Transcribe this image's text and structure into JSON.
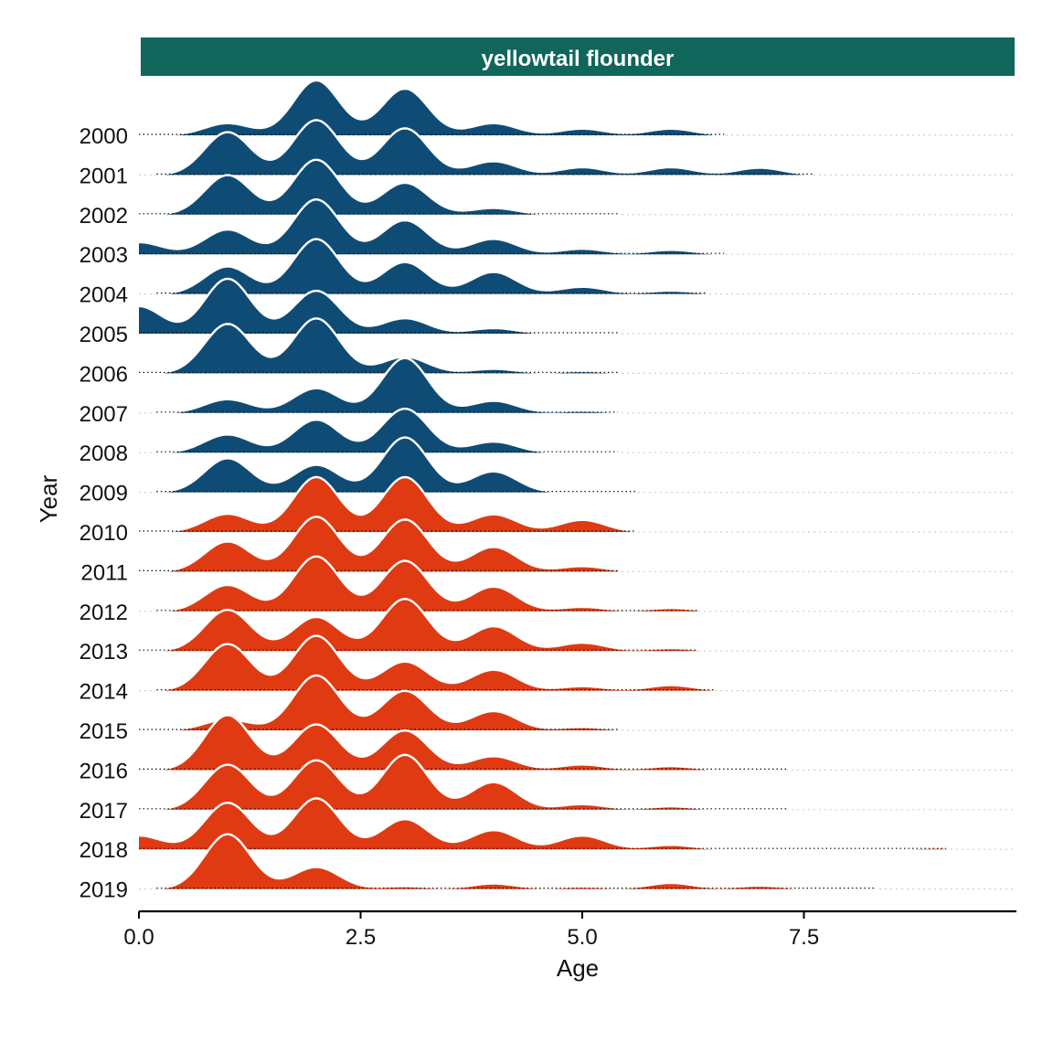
{
  "chart_data": {
    "type": "area",
    "subtype": "ridgeline",
    "title": "",
    "facet_label": "yellowtail flounder",
    "xlabel": "Age",
    "ylabel": "Year",
    "xlim": [
      0,
      9.9
    ],
    "x_ticks": [
      0,
      2.5,
      5,
      7.5
    ],
    "x_tick_labels": [
      "0.0",
      "2.5",
      "5.0",
      "7.5"
    ],
    "y_categories": [
      "2000",
      "2001",
      "2002",
      "2003",
      "2004",
      "2005",
      "2006",
      "2007",
      "2008",
      "2009",
      "2010",
      "2011",
      "2012",
      "2013",
      "2014",
      "2015",
      "2016",
      "2017",
      "2018",
      "2019"
    ],
    "grid": true,
    "legend": "none",
    "colors": {
      "period_2000_2009": "#0f4c75",
      "period_2010_2019": "#e03a12",
      "facet_strip": "#10665a",
      "ridge_outline": "#ffffff"
    },
    "series": [
      {
        "name": "2000",
        "period": "2000-2009",
        "range": [
          0,
          6.6
        ],
        "peaks": [
          [
            1,
            0.22
          ],
          [
            2,
            1.0
          ],
          [
            3,
            0.85
          ],
          [
            4,
            0.22
          ],
          [
            5,
            0.12
          ],
          [
            6,
            0.12
          ]
        ]
      },
      {
        "name": "2001",
        "period": "2000-2009",
        "range": [
          0.2,
          7.6
        ],
        "peaks": [
          [
            1,
            0.78
          ],
          [
            2,
            1.0
          ],
          [
            3,
            0.85
          ],
          [
            4,
            0.25
          ],
          [
            5,
            0.14
          ],
          [
            6,
            0.14
          ],
          [
            7,
            0.13
          ]
        ]
      },
      {
        "name": "2002",
        "period": "2000-2009",
        "range": [
          0,
          5.4
        ],
        "peaks": [
          [
            1,
            0.72
          ],
          [
            2,
            1.0
          ],
          [
            3,
            0.58
          ],
          [
            4,
            0.12
          ]
        ]
      },
      {
        "name": "2003",
        "period": "2000-2009",
        "range": [
          0,
          6.6
        ],
        "peaks": [
          [
            0,
            0.22
          ],
          [
            1,
            0.45
          ],
          [
            2,
            1.0
          ],
          [
            3,
            0.62
          ],
          [
            4,
            0.28
          ],
          [
            5,
            0.1
          ],
          [
            6,
            0.08
          ]
        ]
      },
      {
        "name": "2004",
        "period": "2000-2009",
        "range": [
          0.2,
          6.4
        ],
        "peaks": [
          [
            1,
            0.5
          ],
          [
            2,
            1.0
          ],
          [
            3,
            0.58
          ],
          [
            4,
            0.4
          ],
          [
            5,
            0.13
          ],
          [
            6,
            0.06
          ]
        ]
      },
      {
        "name": "2005",
        "period": "2000-2009",
        "range": [
          0,
          5.4
        ],
        "peaks": [
          [
            0,
            0.5
          ],
          [
            1,
            1.0
          ],
          [
            2,
            0.78
          ],
          [
            3,
            0.28
          ],
          [
            4,
            0.1
          ]
        ]
      },
      {
        "name": "2006",
        "period": "2000-2009",
        "range": [
          0,
          5.4
        ],
        "peaks": [
          [
            1,
            0.9
          ],
          [
            2,
            1.0
          ],
          [
            3,
            0.3
          ],
          [
            4,
            0.08
          ],
          [
            5,
            0.04
          ]
        ]
      },
      {
        "name": "2007",
        "period": "2000-2009",
        "range": [
          0.2,
          5.4
        ],
        "peaks": [
          [
            1,
            0.25
          ],
          [
            2,
            0.45
          ],
          [
            3,
            1.0
          ],
          [
            4,
            0.22
          ],
          [
            5,
            0.04
          ]
        ]
      },
      {
        "name": "2008",
        "period": "2000-2009",
        "range": [
          0.2,
          5.4
        ],
        "peaks": [
          [
            1,
            0.33
          ],
          [
            2,
            0.6
          ],
          [
            3,
            0.8
          ],
          [
            4,
            0.2
          ]
        ]
      },
      {
        "name": "2009",
        "period": "2000-2009",
        "range": [
          0.2,
          5.6
        ],
        "peaks": [
          [
            1,
            0.62
          ],
          [
            2,
            0.5
          ],
          [
            3,
            1.0
          ],
          [
            4,
            0.38
          ]
        ]
      },
      {
        "name": "2010",
        "period": "2010-2019",
        "range": [
          0,
          5.6
        ],
        "peaks": [
          [
            1,
            0.33
          ],
          [
            2,
            1.0
          ],
          [
            3,
            1.0
          ],
          [
            4,
            0.32
          ],
          [
            5,
            0.22
          ]
        ]
      },
      {
        "name": "2011",
        "period": "2010-2019",
        "range": [
          0,
          5.4
        ],
        "peaks": [
          [
            1,
            0.55
          ],
          [
            2,
            1.0
          ],
          [
            3,
            0.95
          ],
          [
            4,
            0.45
          ],
          [
            5,
            0.1
          ]
        ]
      },
      {
        "name": "2012",
        "period": "2010-2019",
        "range": [
          0.2,
          6.3
        ],
        "peaks": [
          [
            1,
            0.48
          ],
          [
            2,
            1.0
          ],
          [
            3,
            0.92
          ],
          [
            4,
            0.45
          ],
          [
            5,
            0.08
          ],
          [
            6,
            0.06
          ]
        ]
      },
      {
        "name": "2013",
        "period": "2010-2019",
        "range": [
          0,
          6.3
        ],
        "peaks": [
          [
            1,
            0.75
          ],
          [
            2,
            0.62
          ],
          [
            3,
            0.95
          ],
          [
            4,
            0.45
          ],
          [
            5,
            0.15
          ],
          [
            6,
            0.05
          ]
        ]
      },
      {
        "name": "2014",
        "period": "2010-2019",
        "range": [
          0.2,
          6.5
        ],
        "peaks": [
          [
            1,
            0.85
          ],
          [
            2,
            1.0
          ],
          [
            3,
            0.53
          ],
          [
            4,
            0.38
          ],
          [
            5,
            0.08
          ],
          [
            6,
            0.1
          ]
        ]
      },
      {
        "name": "2015",
        "period": "2010-2019",
        "range": [
          0,
          5.4
        ],
        "peaks": [
          [
            1,
            0.2
          ],
          [
            2,
            1.0
          ],
          [
            3,
            0.72
          ],
          [
            4,
            0.35
          ],
          [
            5,
            0.06
          ]
        ]
      },
      {
        "name": "2016",
        "period": "2010-2019",
        "range": [
          0,
          7.3
        ],
        "peaks": [
          [
            1,
            1.0
          ],
          [
            2,
            0.83
          ],
          [
            3,
            0.72
          ],
          [
            4,
            0.25
          ],
          [
            5,
            0.1
          ],
          [
            6,
            0.07
          ]
        ]
      },
      {
        "name": "2017",
        "period": "2010-2019",
        "range": [
          0,
          7.3
        ],
        "peaks": [
          [
            1,
            0.82
          ],
          [
            2,
            0.9
          ],
          [
            3,
            1.0
          ],
          [
            4,
            0.5
          ],
          [
            5,
            0.1
          ],
          [
            6,
            0.06
          ]
        ]
      },
      {
        "name": "2018",
        "period": "2010-2019",
        "range": [
          0,
          9.1
        ],
        "peaks": [
          [
            0,
            0.25
          ],
          [
            1,
            0.85
          ],
          [
            2,
            0.93
          ],
          [
            3,
            0.55
          ],
          [
            4,
            0.35
          ],
          [
            5,
            0.25
          ],
          [
            6,
            0.08
          ],
          [
            9,
            0.03
          ]
        ]
      },
      {
        "name": "2019",
        "period": "2010-2019",
        "range": [
          0.2,
          8.3
        ],
        "peaks": [
          [
            1,
            1.0
          ],
          [
            2,
            0.4
          ],
          [
            3,
            0.05
          ],
          [
            4,
            0.1
          ],
          [
            5,
            0.04
          ],
          [
            6,
            0.11
          ],
          [
            7,
            0.06
          ]
        ]
      }
    ]
  }
}
